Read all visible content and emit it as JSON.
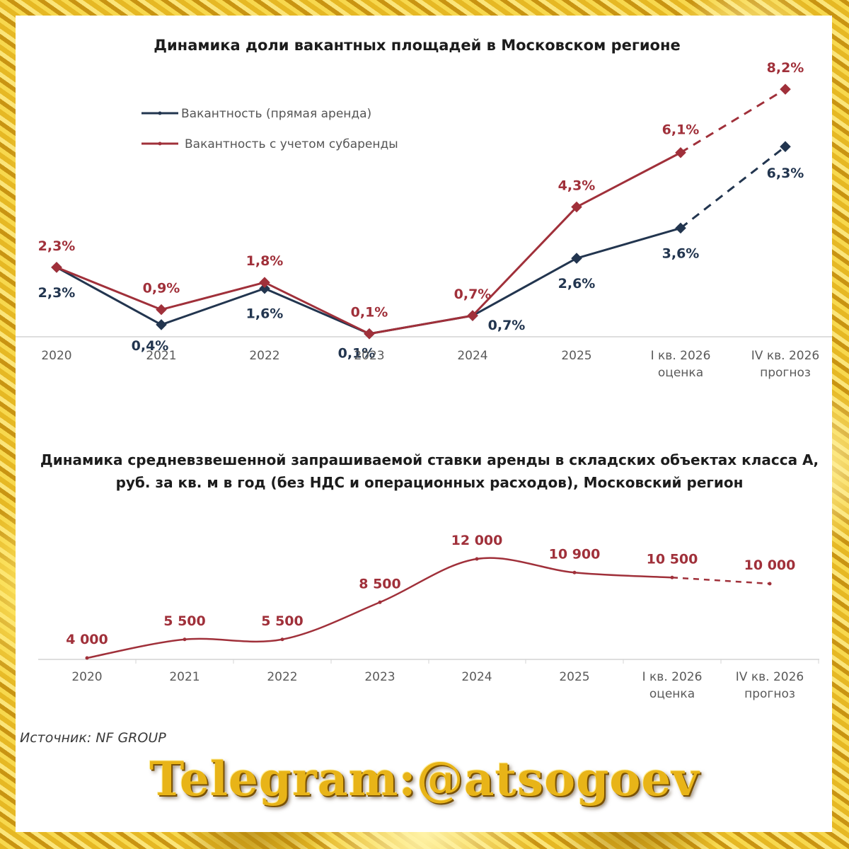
{
  "chart_data": [
    {
      "type": "line",
      "title": "Динамика доли вакантных площадей в Московском регионе",
      "categories": [
        "2020",
        "2021",
        "2022",
        "2023",
        "2024",
        "2025",
        "I кв. 2026\nоценка",
        "IV кв. 2026\nпрогноз"
      ],
      "series": [
        {
          "name": "Вакантность (прямая аренда)",
          "color": "#22354f",
          "values": [
            2.3,
            0.4,
            1.6,
            0.1,
            0.7,
            2.6,
            3.6,
            6.3
          ],
          "labels": [
            "2,3%",
            "0,4%",
            "1,6%",
            "0,1%",
            "0,7%",
            "2,6%",
            "3,6%",
            "6,3%"
          ],
          "forecast_from_index": 6
        },
        {
          "name": "Вакантность с учетом субаренды",
          "color": "#a0303a",
          "values": [
            2.3,
            0.9,
            1.8,
            0.1,
            0.7,
            4.3,
            6.1,
            8.2
          ],
          "labels": [
            "2,3%",
            "0,9%",
            "1,8%",
            "0,1%",
            "0,7%",
            "4,3%",
            "6,1%",
            "8,2%"
          ],
          "forecast_from_index": 6
        }
      ],
      "ylim": [
        0,
        9
      ],
      "grid": false,
      "legend_position": "top-left"
    },
    {
      "type": "line",
      "title": "Динамика средневзвешенной запрашиваемой ставки аренды в складских объектах класса А, руб. за кв. м в год (без НДС и операционных расходов), Московский регион",
      "categories": [
        "2020",
        "2021",
        "2022",
        "2023",
        "2024",
        "2025",
        "I кв. 2026\nоценка",
        "IV кв. 2026\nпрогноз"
      ],
      "series": [
        {
          "color": "#a0303a",
          "values": [
            4000,
            5500,
            5500,
            8500,
            12000,
            10900,
            10500,
            10000
          ],
          "labels": [
            "4 000",
            "5 500",
            "5 500",
            "8 500",
            "12 000",
            "10 900",
            "10 500",
            "10 000"
          ],
          "forecast_from_index": 6
        }
      ],
      "ylim": [
        4000,
        12000
      ],
      "grid": false
    }
  ],
  "source": "Источник: NF GROUP",
  "watermark": "Telegram:@atsogoev"
}
